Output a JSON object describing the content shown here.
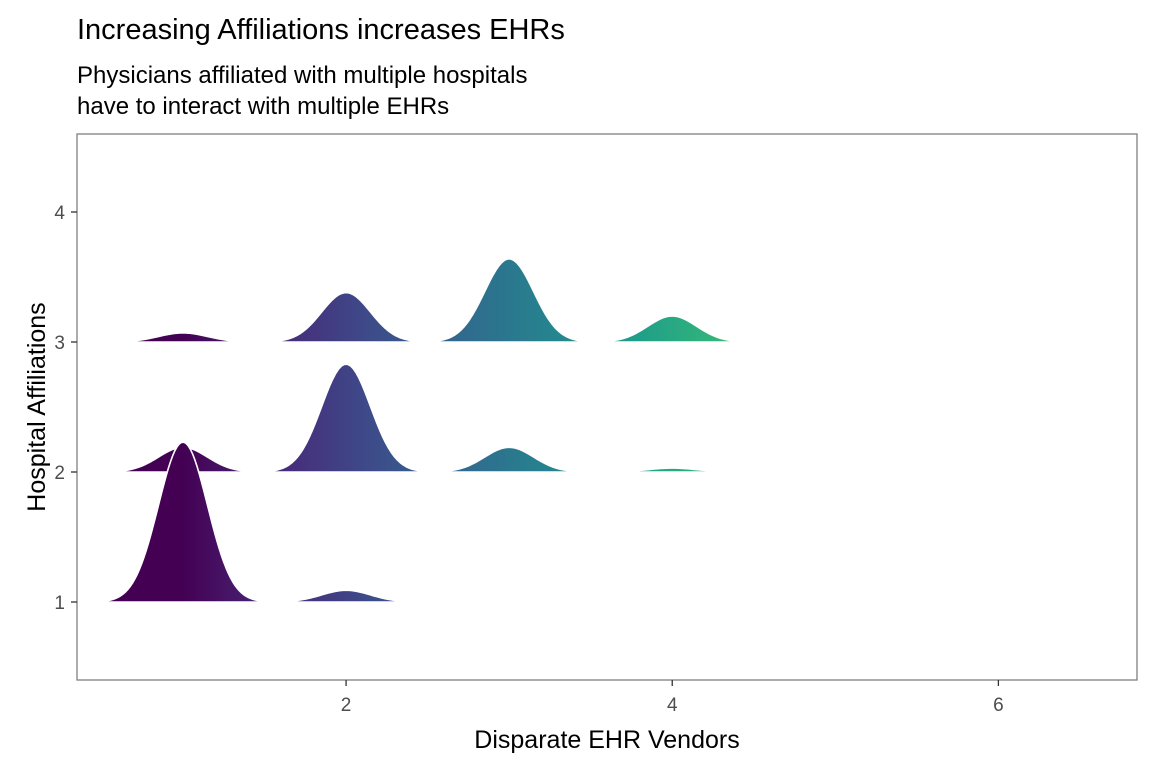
{
  "chart_data": {
    "type": "ridgeline",
    "title": "Increasing Affiliations increases EHRs",
    "subtitle": "Physicians affiliated with multiple hospitals\nhave to interact with multiple EHRs",
    "xlabel": "Disparate EHR Vendors",
    "ylabel": "Hospital Affiliations",
    "xlim": [
      0.35,
      6.85
    ],
    "ylim": [
      0.4,
      4.6
    ],
    "x_ticks": [
      2,
      4,
      6
    ],
    "y_ticks": [
      1,
      2,
      3,
      4
    ],
    "x_tick_labels": [
      "2",
      "4",
      "6"
    ],
    "y_tick_labels": [
      "1",
      "2",
      "3",
      "4"
    ],
    "grid": false,
    "color_scale": "viridis",
    "color_range": [
      1,
      6
    ],
    "ridges": [
      {
        "affiliations": 1,
        "peaks": [
          {
            "x": 1,
            "height": 1.23
          },
          {
            "x": 2,
            "height": 0.09
          },
          {
            "x": 3,
            "height": 0.01
          }
        ],
        "segments": [
          [
            0.5,
            3.5
          ],
          [
            3.75,
            4.25
          ],
          [
            4.75,
            5.25
          ],
          [
            5.65,
            6.35
          ]
        ]
      },
      {
        "affiliations": 2,
        "peaks": [
          {
            "x": 1,
            "height": 0.19
          },
          {
            "x": 2,
            "height": 0.83
          },
          {
            "x": 3,
            "height": 0.19
          },
          {
            "x": 4,
            "height": 0.03
          },
          {
            "x": 5,
            "height": 0.005
          }
        ],
        "segments": [
          [
            0.5,
            4.45
          ],
          [
            4.65,
            5.35
          ]
        ]
      },
      {
        "affiliations": 3,
        "peaks": [
          {
            "x": 1,
            "height": 0.07
          },
          {
            "x": 2,
            "height": 0.38
          },
          {
            "x": 3,
            "height": 0.64
          },
          {
            "x": 4,
            "height": 0.2
          }
        ],
        "segments": [
          [
            0.55,
            4.5
          ]
        ]
      }
    ]
  }
}
